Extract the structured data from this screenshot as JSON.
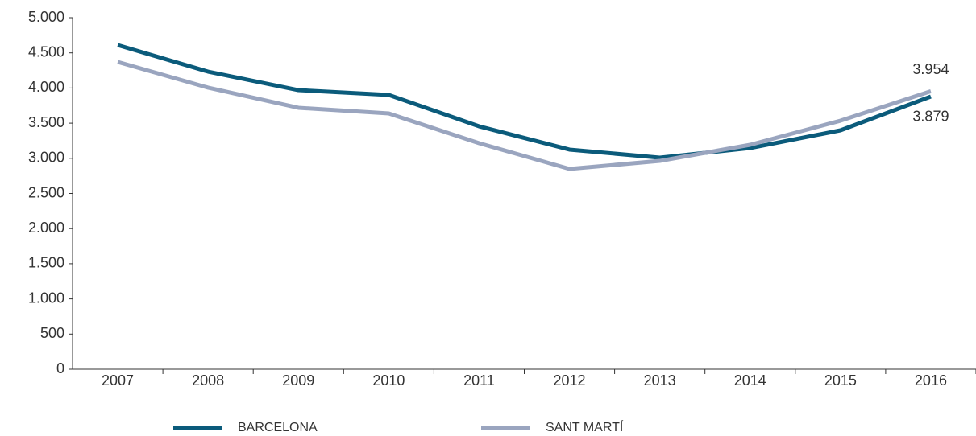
{
  "chart_data": {
    "type": "line",
    "categories": [
      "2007",
      "2008",
      "2009",
      "2010",
      "2011",
      "2012",
      "2013",
      "2014",
      "2015",
      "2016"
    ],
    "series": [
      {
        "name": "BARCELONA",
        "color": "#0b5b7b",
        "values": [
          4611,
          4233,
          3970,
          3902,
          3455,
          3124,
          3009,
          3146,
          3398,
          3879
        ],
        "value_labels": [
          null,
          null,
          null,
          null,
          null,
          null,
          null,
          null,
          null,
          "3.879"
        ]
      },
      {
        "name": "SANT MARTÍ",
        "color": "#9aa5bf",
        "values": [
          4371,
          4005,
          3719,
          3638,
          3215,
          2849,
          2963,
          3192,
          3535,
          3954
        ],
        "value_labels": [
          null,
          null,
          null,
          null,
          null,
          null,
          null,
          null,
          null,
          "3.954"
        ]
      }
    ],
    "ylim": [
      0,
      5000
    ],
    "yticks": [
      0,
      500,
      {
        "value": 1000,
        "label": "1.000"
      },
      {
        "value": 1500,
        "label": "1.500"
      },
      {
        "value": 2000,
        "label": "2.000"
      },
      {
        "value": 2500,
        "label": "2.500"
      },
      {
        "value": 3000,
        "label": "3.000"
      },
      {
        "value": 3500,
        "label": "3.500"
      },
      {
        "value": 4000,
        "label": "4.000"
      },
      {
        "value": 4500,
        "label": "4.500"
      },
      {
        "value": 5000,
        "label": "5.000"
      }
    ],
    "grid": false
  }
}
